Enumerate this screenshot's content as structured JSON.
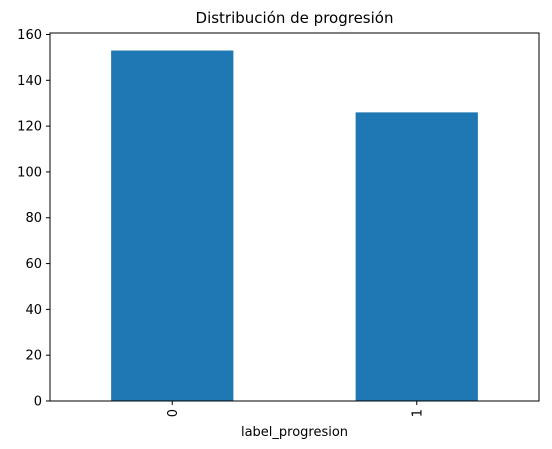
{
  "chart_data": {
    "type": "bar",
    "title": "Distribución de progresión",
    "xlabel": "label_progresion",
    "ylabel": "",
    "categories": [
      "0",
      "1"
    ],
    "values": [
      153,
      126
    ],
    "ylim": [
      0,
      160.65
    ],
    "yticks": [
      0,
      20,
      40,
      60,
      80,
      100,
      120,
      140,
      160
    ],
    "bar_color": "#1f77b4",
    "grid": false,
    "legend": "none",
    "xtick_rotation": "vertical"
  }
}
